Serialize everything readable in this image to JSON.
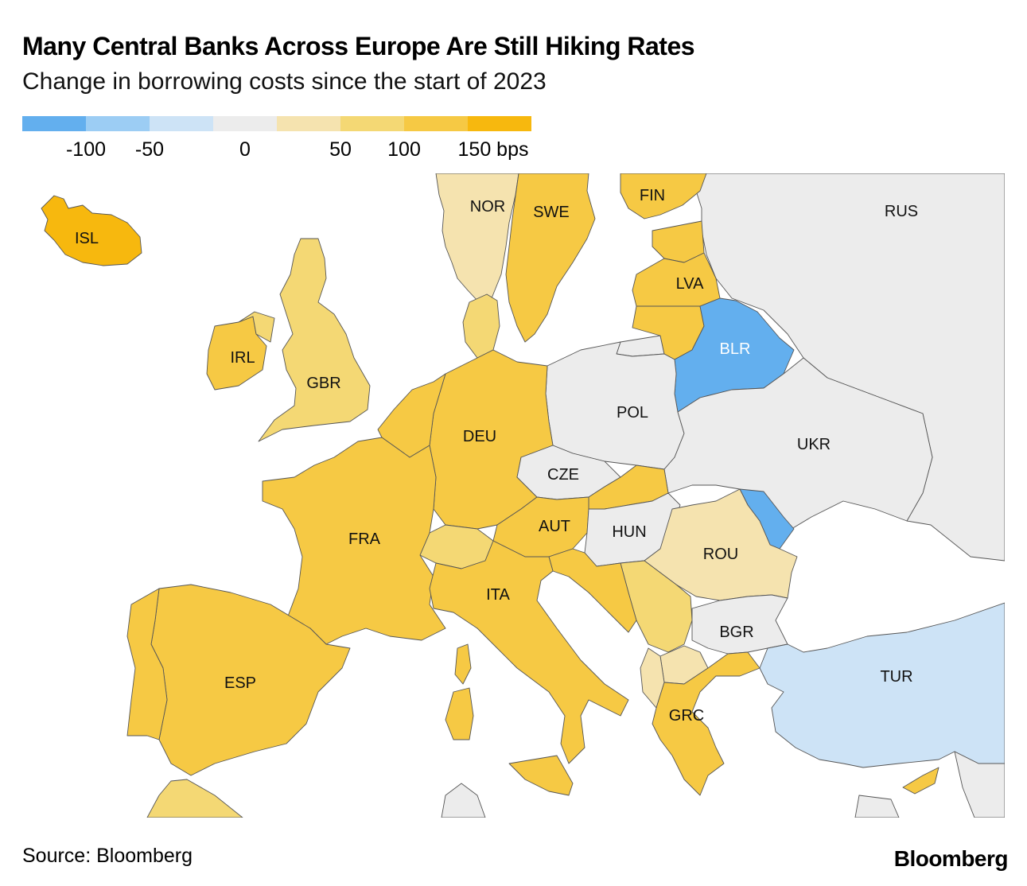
{
  "title": "Many Central Banks Across Europe Are Still Hiking Rates",
  "subtitle": "Change in borrowing costs since the start of 2023",
  "legend": {
    "colors": [
      "#63afee",
      "#9ccdf4",
      "#cde3f6",
      "#ececec",
      "#f5e3af",
      "#f4d874",
      "#f6c944",
      "#f7b80e"
    ],
    "labels": [
      "-100",
      "-50",
      "0",
      "50",
      "100",
      "150 bps"
    ]
  },
  "countries": [
    {
      "code": "ISL",
      "label": "ISL",
      "bin": "150+"
    },
    {
      "code": "NOR",
      "label": "NOR",
      "bin": "0-50"
    },
    {
      "code": "SWE",
      "label": "SWE",
      "bin": "100-150"
    },
    {
      "code": "FIN",
      "label": "FIN",
      "bin": "100-150"
    },
    {
      "code": "RUS",
      "label": "RUS",
      "bin": "none"
    },
    {
      "code": "LVA",
      "label": "LVA",
      "bin": "100-150"
    },
    {
      "code": "IRL",
      "label": "IRL",
      "bin": "100-150"
    },
    {
      "code": "GBR",
      "label": "GBR",
      "bin": "50-100"
    },
    {
      "code": "BLR",
      "label": "BLR",
      "bin": "-150--100"
    },
    {
      "code": "POL",
      "label": "POL",
      "bin": "none"
    },
    {
      "code": "DEU",
      "label": "DEU",
      "bin": "100-150"
    },
    {
      "code": "UKR",
      "label": "UKR",
      "bin": "none"
    },
    {
      "code": "CZE",
      "label": "CZE",
      "bin": "none"
    },
    {
      "code": "AUT",
      "label": "AUT",
      "bin": "100-150"
    },
    {
      "code": "HUN",
      "label": "HUN",
      "bin": "none"
    },
    {
      "code": "FRA",
      "label": "FRA",
      "bin": "100-150"
    },
    {
      "code": "ROU",
      "label": "ROU",
      "bin": "0-50"
    },
    {
      "code": "ITA",
      "label": "ITA",
      "bin": "100-150"
    },
    {
      "code": "BGR",
      "label": "BGR",
      "bin": "none"
    },
    {
      "code": "TUR",
      "label": "TUR",
      "bin": "-50-0"
    },
    {
      "code": "ESP",
      "label": "ESP",
      "bin": "100-150"
    },
    {
      "code": "GRC",
      "label": "GRC",
      "bin": "100-150"
    }
  ],
  "source": "Source: Bloomberg",
  "brand": "Bloomberg"
}
